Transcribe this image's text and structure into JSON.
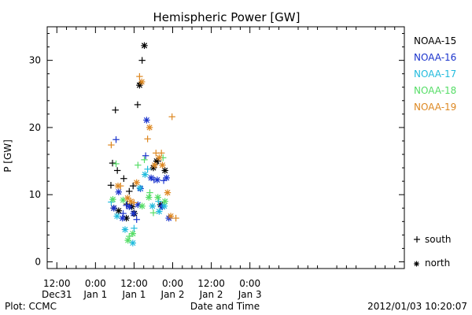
{
  "chart_data": {
    "type": "scatter",
    "title": "Hemispheric Power [GW]",
    "xlabel": "Date and Time",
    "ylabel": "P [GW]",
    "footer_left": "Plot: CCMC",
    "footer_right": "2012/01/03 10:20:07",
    "x_unit": "hours after 2011-12-31 12:00 UT",
    "xlim": [
      -3,
      108
    ],
    "ylim": [
      -1,
      35
    ],
    "y_ticks": [
      0,
      10,
      20,
      30
    ],
    "x_ticks": [
      {
        "x": 0,
        "line1": "12:00",
        "line2": "Dec31"
      },
      {
        "x": 12,
        "line1": "0:00",
        "line2": "Jan 1"
      },
      {
        "x": 24,
        "line1": "12:00",
        "line2": "Jan 1"
      },
      {
        "x": 36,
        "line1": "0:00",
        "line2": "Jan 2"
      },
      {
        "x": 48,
        "line1": "12:00",
        "line2": "Jan 2"
      },
      {
        "x": 60,
        "line1": "0:00",
        "line2": "Jan 3"
      }
    ],
    "marker_legend": [
      {
        "symbol": "+",
        "label": "south"
      },
      {
        "symbol": "*",
        "label": "north"
      }
    ],
    "series": [
      {
        "name": "NOAA-15",
        "color": "#000000",
        "south": [
          [
            16.8,
            11.4
          ],
          [
            17.3,
            14.7
          ],
          [
            18.2,
            22.6
          ],
          [
            18.8,
            13.6
          ],
          [
            20.8,
            12.4
          ],
          [
            21.8,
            8.6
          ],
          [
            22.5,
            10.5
          ],
          [
            23.7,
            11.3
          ],
          [
            25.1,
            23.4
          ],
          [
            25.9,
            26.6
          ],
          [
            26.5,
            30.0
          ],
          [
            31.4,
            15.0
          ]
        ],
        "north": [
          [
            17.7,
            8.0
          ],
          [
            19.2,
            7.6
          ],
          [
            21.6,
            6.5
          ],
          [
            23.3,
            8.2
          ],
          [
            24.1,
            7.2
          ],
          [
            25.7,
            26.3
          ],
          [
            27.2,
            32.2
          ],
          [
            30.0,
            14.0
          ],
          [
            31.0,
            15.0
          ],
          [
            32.2,
            8.5
          ],
          [
            33.6,
            13.6
          ]
        ]
      },
      {
        "name": "NOAA-16",
        "color": "#1a33cc",
        "south": [
          [
            18.4,
            18.2
          ],
          [
            20.6,
            7.2
          ],
          [
            21.6,
            8.4
          ],
          [
            24.8,
            6.3
          ],
          [
            27.6,
            15.8
          ],
          [
            30.2,
            12.2
          ],
          [
            32.6,
            8.3
          ],
          [
            33.2,
            12.1
          ]
        ],
        "north": [
          [
            17.7,
            8.0
          ],
          [
            19.2,
            10.4
          ],
          [
            20.4,
            6.5
          ],
          [
            22.5,
            8.2
          ],
          [
            23.8,
            7.2
          ],
          [
            25.2,
            8.5
          ],
          [
            26.0,
            10.9
          ],
          [
            27.9,
            21.1
          ],
          [
            29.3,
            12.5
          ],
          [
            31.2,
            12.2
          ],
          [
            32.8,
            8.2
          ],
          [
            34.1,
            12.5
          ],
          [
            34.8,
            6.5
          ]
        ]
      },
      {
        "name": "NOAA-17",
        "color": "#22bbdd",
        "south": [
          [
            16.9,
            8.9
          ],
          [
            24.0,
            5.0
          ],
          [
            28.2,
            13.8
          ],
          [
            31.6,
            9.0
          ]
        ],
        "north": [
          [
            18.7,
            6.8
          ],
          [
            21.2,
            4.8
          ],
          [
            23.6,
            2.8
          ],
          [
            25.8,
            11.0
          ],
          [
            27.4,
            13.0
          ],
          [
            29.7,
            8.3
          ],
          [
            31.8,
            7.5
          ],
          [
            33.4,
            8.3
          ]
        ]
      },
      {
        "name": "NOAA-18",
        "color": "#55dd66",
        "south": [
          [
            18.4,
            14.6
          ],
          [
            22.5,
            3.8
          ],
          [
            25.2,
            14.4
          ],
          [
            27.2,
            15.2
          ],
          [
            28.9,
            10.3
          ],
          [
            30.0,
            7.3
          ],
          [
            33.0,
            15.5
          ]
        ],
        "north": [
          [
            17.4,
            9.3
          ],
          [
            20.6,
            9.2
          ],
          [
            22.1,
            3.2
          ],
          [
            23.6,
            4.2
          ],
          [
            26.5,
            8.3
          ],
          [
            28.6,
            9.6
          ],
          [
            31.4,
            9.6
          ],
          [
            33.6,
            9.0
          ]
        ]
      },
      {
        "name": "NOAA-19",
        "color": "#dd8822",
        "south": [
          [
            16.9,
            17.4
          ],
          [
            19.8,
            11.3
          ],
          [
            24.0,
            8.8
          ],
          [
            25.7,
            27.6
          ],
          [
            28.2,
            18.3
          ],
          [
            30.8,
            16.2
          ],
          [
            32.5,
            16.2
          ],
          [
            35.8,
            21.6
          ],
          [
            37.0,
            6.5
          ]
        ],
        "north": [
          [
            19.0,
            11.3
          ],
          [
            22.0,
            9.5
          ],
          [
            23.0,
            9.0
          ],
          [
            24.8,
            11.8
          ],
          [
            26.4,
            26.8
          ],
          [
            28.8,
            20.0
          ],
          [
            30.4,
            14.4
          ],
          [
            31.8,
            15.5
          ],
          [
            32.8,
            14.4
          ],
          [
            34.4,
            10.3
          ],
          [
            35.4,
            6.8
          ]
        ]
      }
    ]
  }
}
